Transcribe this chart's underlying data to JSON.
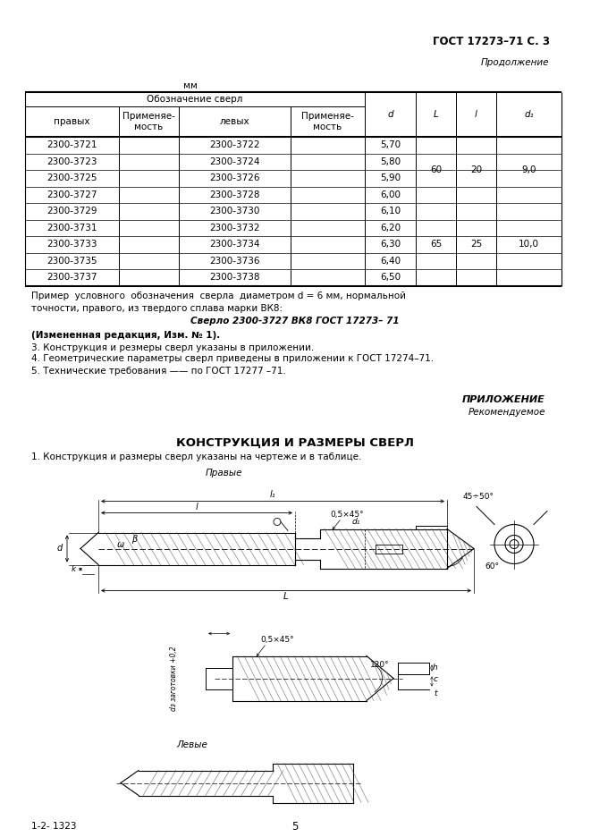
{
  "page_header_right": "ГОСТ 17273–71 С. 3",
  "continuation_label": "Продолжение",
  "mm_label": "мм",
  "table_col_headers_merged": "Обозначение сверл",
  "table_rows": [
    [
      "2300-3721",
      "",
      "2300-3722",
      "",
      "5,70",
      "",
      "",
      ""
    ],
    [
      "2300-3723",
      "",
      "2300-3724",
      "",
      "5,80",
      "",
      "",
      ""
    ],
    [
      "2300-3725",
      "",
      "2300-3726",
      "",
      "5,90",
      "",
      "",
      ""
    ],
    [
      "2300-3727",
      "",
      "2300-3728",
      "",
      "6,00",
      "",
      "",
      ""
    ],
    [
      "2300-3729",
      "",
      "2300-3730",
      "",
      "6,10",
      "",
      "",
      ""
    ],
    [
      "2300-3731",
      "",
      "2300-3732",
      "",
      "6,20",
      "",
      "",
      ""
    ],
    [
      "2300-3733",
      "",
      "2300-3734",
      "",
      "6,30",
      "",
      "",
      ""
    ],
    [
      "2300-3735",
      "",
      "2300-3736",
      "",
      "6,40",
      "",
      "",
      ""
    ],
    [
      "2300-3737",
      "",
      "2300-3738",
      "",
      "6,50",
      "",
      "",
      ""
    ]
  ],
  "span_L": [
    {
      "val": "60",
      "r0": 0,
      "r1": 3
    },
    {
      "val": "65",
      "r0": 4,
      "r1": 8
    }
  ],
  "span_l": [
    {
      "val": "20",
      "r0": 0,
      "r1": 3
    },
    {
      "val": "25",
      "r0": 4,
      "r1": 8
    }
  ],
  "span_d1": [
    {
      "val": "9,0",
      "r0": 0,
      "r1": 3
    },
    {
      "val": "10,0",
      "r0": 4,
      "r1": 8
    }
  ],
  "example_text_spaced": "Пример  условного  обозначения  сверла  диаметром",
  "example_text_rest": " d = 6 мм, нормальной",
  "example_text_line2": "точности, правого, из твердого сплава марки ВК8:",
  "example_italic": "Сверло 2300-3727 ВК8 ГОСТ 17273– 71",
  "changed_edition": "(Измененная редакция, Изм. № 1).",
  "note3": "3. Конструкция и резмеры сверл указаны в приложении.",
  "note4": "4. Геометрические параметры сверл приведены в приложении к ГОСТ 17274–71.",
  "note5": "5. Технические требования —— по ГОСТ 17277 –71.",
  "prilozhenie": "ПРИЛОЖЕНИЕ",
  "rekomenduyemoe": "Рекомендуемое",
  "section_title": "КОНСТРУКЦИЯ И РАЗМЕРЫ СВЕРЛ",
  "section_intro": "1. Конструкция и размеры сверл указаны на чертеже и в таблице.",
  "pravye_label": "Правые",
  "levye_label": "Левые",
  "footer_left": "1-2- 1323",
  "footer_center": "5",
  "bg_color": "#ffffff",
  "text_color": "#000000"
}
